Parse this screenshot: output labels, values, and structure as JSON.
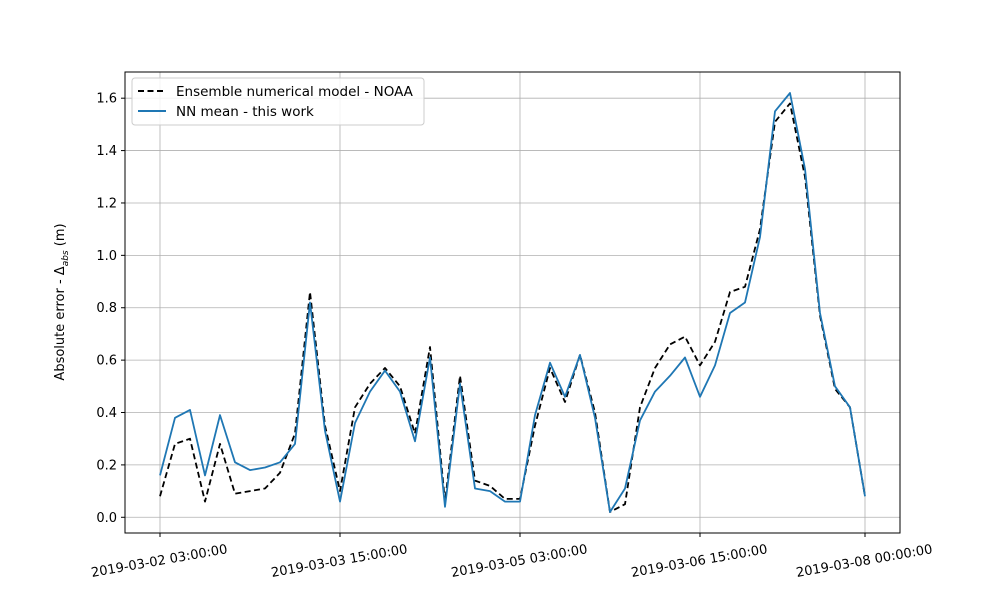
{
  "chart_data": {
    "type": "line",
    "ylabel": "Absolute error - Δ",
    "ylabel_sub": "abs",
    "ylabel_unit": " (m)",
    "ylim": [
      -0.06,
      1.7
    ],
    "y_ticks": [
      0.0,
      0.2,
      0.4,
      0.6,
      0.8,
      1.0,
      1.2,
      1.4,
      1.6
    ],
    "y_tick_labels": [
      "0.0",
      "0.2",
      "0.4",
      "0.6",
      "0.8",
      "1.0",
      "1.2",
      "1.4",
      "1.6"
    ],
    "x_ticks": [
      0,
      12,
      24,
      36,
      47
    ],
    "x_tick_labels": [
      "2019-03-02 03:00:00",
      "2019-03-03 15:00:00",
      "2019-03-05 03:00:00",
      "2019-03-06 15:00:00",
      "2019-03-08 00:00:00"
    ],
    "grid": true,
    "legend_position": "top-left",
    "x_start": "2019-03-02 03:00:00",
    "x_step_hours": 3,
    "series": [
      {
        "name": "Ensemble numerical model - NOAA",
        "color": "#000000",
        "dashed": true,
        "values": [
          0.08,
          0.28,
          0.3,
          0.06,
          0.28,
          0.09,
          0.1,
          0.11,
          0.17,
          0.32,
          0.86,
          0.35,
          0.1,
          0.42,
          0.51,
          0.57,
          0.5,
          0.32,
          0.65,
          0.06,
          0.54,
          0.14,
          0.12,
          0.07,
          0.07,
          0.35,
          0.57,
          0.44,
          0.62,
          0.4,
          0.02,
          0.05,
          0.42,
          0.57,
          0.66,
          0.69,
          0.58,
          0.67,
          0.86,
          0.88,
          1.1,
          1.51,
          1.58,
          1.3,
          0.77,
          0.49,
          0.42,
          0.08
        ]
      },
      {
        "name": "NN mean - this work",
        "color": "#1f77b4",
        "dashed": false,
        "values": [
          0.16,
          0.38,
          0.41,
          0.16,
          0.39,
          0.21,
          0.18,
          0.19,
          0.21,
          0.28,
          0.82,
          0.33,
          0.06,
          0.36,
          0.48,
          0.56,
          0.48,
          0.29,
          0.61,
          0.04,
          0.51,
          0.11,
          0.1,
          0.06,
          0.06,
          0.39,
          0.59,
          0.46,
          0.62,
          0.38,
          0.02,
          0.11,
          0.37,
          0.48,
          0.54,
          0.61,
          0.46,
          0.58,
          0.78,
          0.82,
          1.07,
          1.55,
          1.62,
          1.33,
          0.78,
          0.5,
          0.42,
          0.08
        ]
      }
    ]
  }
}
